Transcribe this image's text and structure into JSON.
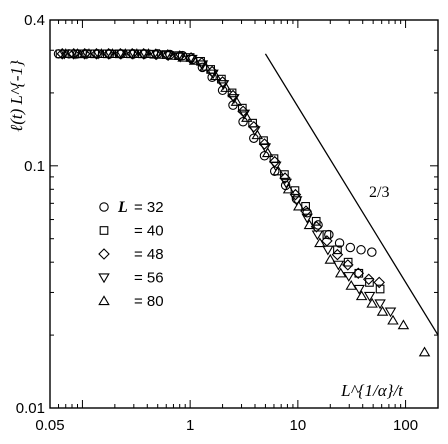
{
  "chart_data": {
    "type": "scatter",
    "xscale": "log",
    "yscale": "log",
    "xlim": [
      0.05,
      200
    ],
    "ylim": [
      0.01,
      0.4
    ],
    "xticks": [
      {
        "value": 0.05,
        "label": "0.05"
      },
      {
        "value": 1,
        "label": "1"
      },
      {
        "value": 10,
        "label": "10"
      },
      {
        "value": 100,
        "label": "100"
      }
    ],
    "yticks": [
      {
        "value": 0.01,
        "label": "0.01"
      },
      {
        "value": 0.1,
        "label": "0.1"
      },
      {
        "value": 0.4,
        "label": "0.4"
      }
    ],
    "xlabel": "L^{1/α}/t",
    "ylabel": "ℓ(t) L^{-1}",
    "legend_title": "L",
    "legend_position": "left",
    "annotation": {
      "text": "2/3",
      "line": {
        "x": [
          5,
          200
        ],
        "y": [
          0.29,
          0.02
        ]
      }
    },
    "series": [
      {
        "name": "= 32",
        "marker": "circle",
        "x": [
          0.06,
          0.075,
          0.09,
          0.11,
          0.14,
          0.18,
          0.23,
          0.3,
          0.38,
          0.5,
          0.65,
          0.85,
          1.05,
          1.3,
          1.6,
          2.0,
          2.5,
          3.1,
          3.9,
          4.9,
          6.1,
          7.7,
          9.7,
          12.2,
          15.4,
          19.4,
          24.4,
          30.7,
          38.6,
          48.6
        ],
        "y": [
          0.29,
          0.29,
          0.29,
          0.29,
          0.29,
          0.29,
          0.29,
          0.29,
          0.29,
          0.29,
          0.288,
          0.285,
          0.275,
          0.255,
          0.232,
          0.205,
          0.178,
          0.152,
          0.13,
          0.11,
          0.095,
          0.083,
          0.073,
          0.064,
          0.057,
          0.052,
          0.048,
          0.046,
          0.045,
          0.044
        ]
      },
      {
        "name": "= 40",
        "marker": "square",
        "x": [
          0.062,
          0.08,
          0.1,
          0.13,
          0.17,
          0.22,
          0.28,
          0.36,
          0.46,
          0.6,
          0.78,
          1.0,
          1.25,
          1.55,
          1.95,
          2.45,
          3.05,
          3.8,
          4.8,
          6.0,
          7.5,
          9.4,
          11.8,
          14.8,
          18.6,
          23.3,
          29.3,
          36.8,
          46.2,
          58
        ],
        "y": [
          0.29,
          0.29,
          0.29,
          0.29,
          0.29,
          0.29,
          0.29,
          0.29,
          0.289,
          0.288,
          0.285,
          0.28,
          0.27,
          0.25,
          0.228,
          0.2,
          0.173,
          0.15,
          0.127,
          0.107,
          0.092,
          0.079,
          0.068,
          0.059,
          0.052,
          0.045,
          0.04,
          0.036,
          0.033,
          0.031
        ]
      },
      {
        "name": "= 48",
        "marker": "diamond",
        "x": [
          0.065,
          0.083,
          0.105,
          0.135,
          0.175,
          0.225,
          0.29,
          0.37,
          0.48,
          0.62,
          0.8,
          1.02,
          1.28,
          1.6,
          2.0,
          2.5,
          3.1,
          3.9,
          4.9,
          6.1,
          7.6,
          9.5,
          11.9,
          14.9,
          18.6,
          23.3,
          29.1,
          36.4,
          45.5,
          56.9
        ],
        "y": [
          0.29,
          0.29,
          0.29,
          0.29,
          0.29,
          0.29,
          0.29,
          0.29,
          0.289,
          0.287,
          0.284,
          0.279,
          0.266,
          0.245,
          0.222,
          0.195,
          0.168,
          0.145,
          0.123,
          0.104,
          0.089,
          0.076,
          0.065,
          0.056,
          0.049,
          0.043,
          0.039,
          0.036,
          0.034,
          0.033
        ]
      },
      {
        "name": "= 56",
        "marker": "triangle-down",
        "x": [
          0.068,
          0.087,
          0.11,
          0.14,
          0.18,
          0.23,
          0.3,
          0.38,
          0.49,
          0.63,
          0.81,
          1.04,
          1.3,
          1.63,
          2.04,
          2.55,
          3.19,
          3.99,
          4.99,
          6.24,
          7.8,
          9.75,
          12.2,
          15.2,
          19.0,
          23.8,
          29.7,
          37.1,
          46.4,
          58.0,
          72.5
        ],
        "y": [
          0.29,
          0.29,
          0.29,
          0.29,
          0.29,
          0.29,
          0.29,
          0.29,
          0.288,
          0.286,
          0.282,
          0.276,
          0.262,
          0.24,
          0.217,
          0.19,
          0.164,
          0.14,
          0.119,
          0.1,
          0.085,
          0.072,
          0.061,
          0.052,
          0.045,
          0.039,
          0.035,
          0.031,
          0.029,
          0.027,
          0.025
        ]
      },
      {
        "name": "= 80",
        "marker": "triangle-up",
        "x": [
          0.07,
          0.09,
          0.115,
          0.15,
          0.19,
          0.25,
          0.32,
          0.41,
          0.52,
          0.67,
          0.86,
          1.1,
          1.38,
          1.72,
          2.15,
          2.69,
          3.36,
          4.2,
          5.25,
          6.56,
          8.2,
          10.2,
          12.8,
          16.0,
          20.0,
          25.0,
          31.3,
          39.1,
          48.9,
          61.1,
          76.4,
          95.5,
          150
        ],
        "y": [
          0.29,
          0.29,
          0.29,
          0.29,
          0.29,
          0.29,
          0.29,
          0.29,
          0.288,
          0.285,
          0.28,
          0.272,
          0.257,
          0.235,
          0.21,
          0.184,
          0.158,
          0.134,
          0.113,
          0.095,
          0.08,
          0.068,
          0.057,
          0.048,
          0.041,
          0.036,
          0.032,
          0.029,
          0.027,
          0.025,
          0.023,
          0.022,
          0.017
        ]
      }
    ]
  }
}
